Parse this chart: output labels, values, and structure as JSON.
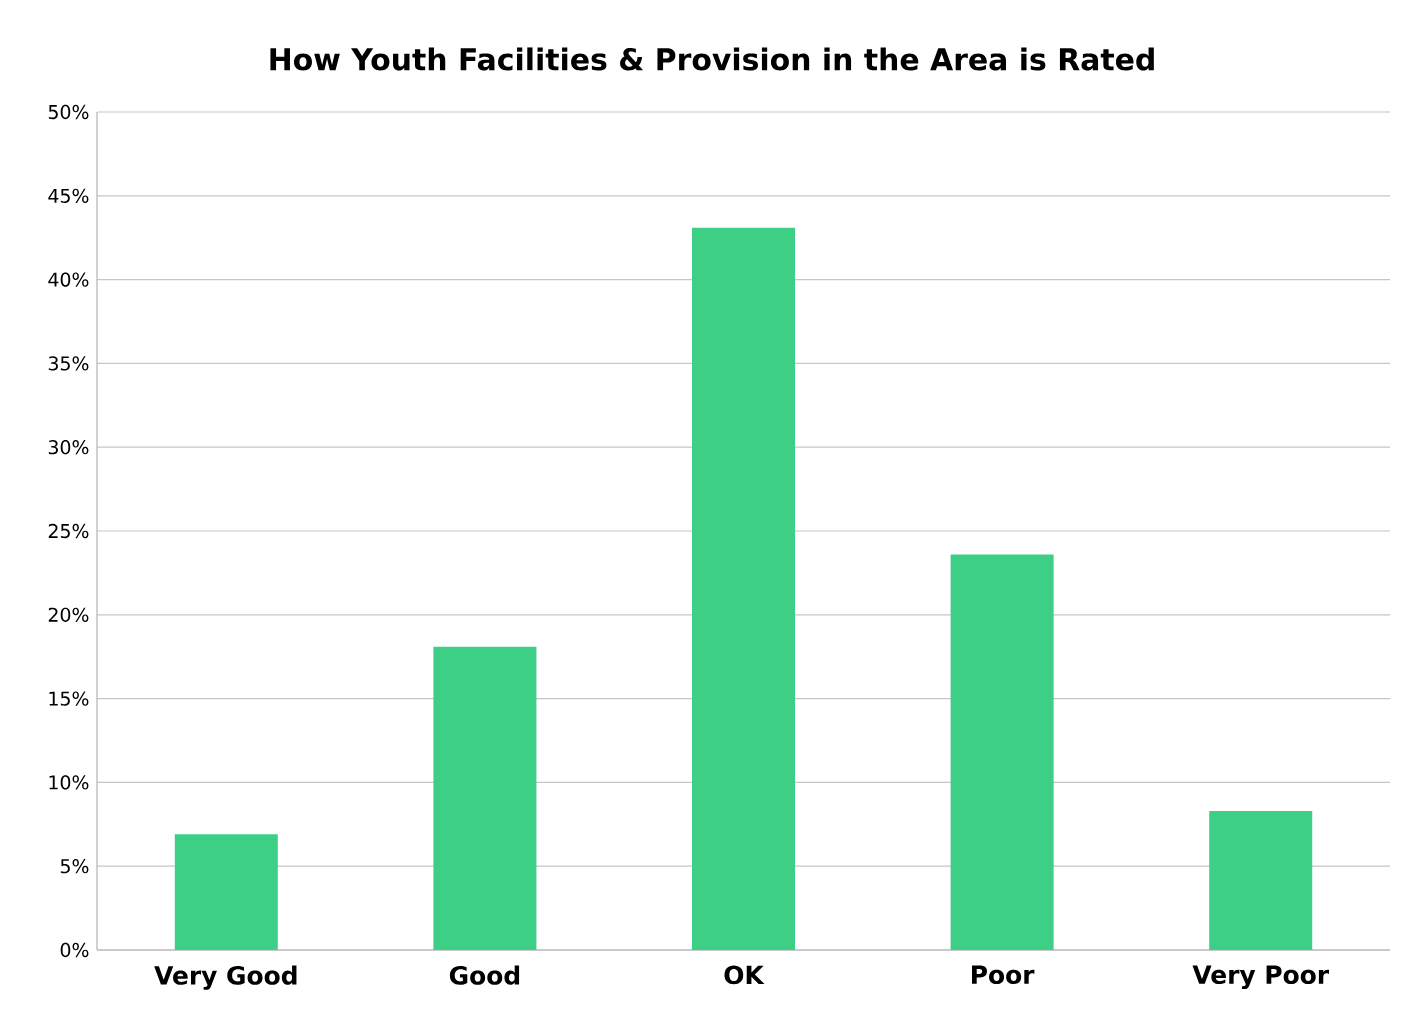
{
  "chart_data": {
    "type": "bar",
    "title": "How Youth Facilities & Provision in the Area is Rated",
    "categories": [
      "Very Good",
      "Good",
      "OK",
      "Poor",
      "Very Poor"
    ],
    "values": [
      6.9,
      18.1,
      43.1,
      23.6,
      8.3
    ],
    "color": "#3ccf85",
    "ylim": [
      0,
      50
    ],
    "yticks": [
      {
        "value": 0,
        "label": "0%"
      },
      {
        "value": 5,
        "label": "5%"
      },
      {
        "value": 10,
        "label": "10%"
      },
      {
        "value": 15,
        "label": "15%"
      },
      {
        "value": 20,
        "label": "20%"
      },
      {
        "value": 25,
        "label": "25%"
      },
      {
        "value": 30,
        "label": "30%"
      },
      {
        "value": 35,
        "label": "35%"
      },
      {
        "value": 40,
        "label": "40%"
      },
      {
        "value": 45,
        "label": "45%"
      },
      {
        "value": 50,
        "label": "50%"
      }
    ],
    "grid": "y"
  }
}
